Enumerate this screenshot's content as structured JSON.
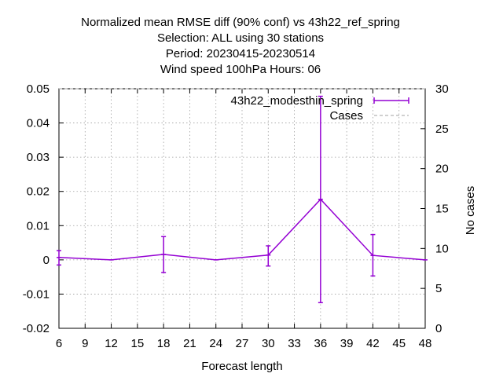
{
  "chart_data": {
    "type": "line",
    "title_lines": [
      "Normalized mean RMSE diff (90% conf) vs 43h22_ref_spring",
      "Selection: ALL using    30 stations",
      "Period: 20230415-20230514",
      "Wind speed 100hPa   Hours:  06"
    ],
    "xlabel": "Forecast length",
    "ylabel": "",
    "y2label": "No cases",
    "xlim": [
      6,
      48
    ],
    "ylim": [
      -0.02,
      0.05
    ],
    "y2lim": [
      0,
      30
    ],
    "xticks": [
      "6",
      "9",
      "12",
      "15",
      "18",
      "21",
      "24",
      "27",
      "30",
      "33",
      "36",
      "39",
      "42",
      "45",
      "48"
    ],
    "yticks": [
      "-0.02",
      "-0.01",
      "0",
      "0.01",
      "0.02",
      "0.03",
      "0.04",
      "0.05"
    ],
    "y2ticks": [
      "0",
      "5",
      "10",
      "15",
      "20",
      "25",
      "30"
    ],
    "grid": true,
    "legend_position": "top-right",
    "series": [
      {
        "name": "43h22_modesthin_spring",
        "color": "#9400d3",
        "x": [
          6,
          12,
          18,
          24,
          30,
          36,
          42,
          48
        ],
        "y": [
          0.0007,
          0.0,
          0.0016,
          0.0,
          0.0014,
          0.0177,
          0.0013,
          0.0
        ],
        "err_low": [
          -0.0015,
          null,
          -0.0037,
          null,
          -0.0018,
          -0.0125,
          -0.0047,
          null
        ],
        "err_high": [
          0.0027,
          null,
          0.0068,
          null,
          0.0041,
          0.0478,
          0.0074,
          null
        ]
      },
      {
        "name": "Cases",
        "color": "#a0a0a0",
        "axis": "y2",
        "x": [
          6,
          12,
          18,
          24,
          30,
          36,
          42,
          48
        ],
        "y": [
          30,
          30,
          30,
          30,
          30,
          30,
          30,
          30
        ]
      }
    ]
  }
}
